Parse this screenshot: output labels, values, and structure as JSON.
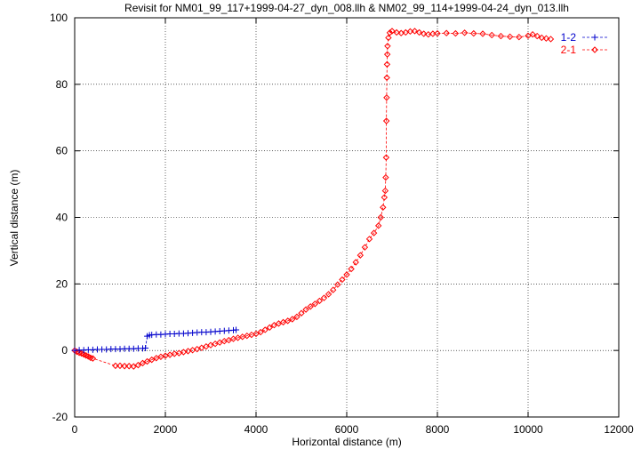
{
  "chart_data": {
    "type": "scatter",
    "title": "Revisit for NM01_99_117+1999-04-27_dyn_008.llh & NM02_99_114+1999-04-24_dyn_013.llh",
    "xlabel": "Horizontal distance (m)",
    "ylabel": "Vertical distance (m)",
    "xlim": [
      0,
      12000
    ],
    "ylim": [
      -20,
      100
    ],
    "xticks": [
      0,
      2000,
      4000,
      6000,
      8000,
      10000,
      12000
    ],
    "yticks": [
      -20,
      0,
      20,
      40,
      60,
      80,
      100
    ],
    "grid": true,
    "legend_position": "top-right",
    "series": [
      {
        "name": "1-2",
        "color": "#0000cc",
        "marker": "plus",
        "line": "dashed",
        "points": [
          [
            0,
            0.0
          ],
          [
            100,
            0.1
          ],
          [
            200,
            0.1
          ],
          [
            300,
            0.2
          ],
          [
            400,
            0.2
          ],
          [
            500,
            0.3
          ],
          [
            600,
            0.3
          ],
          [
            700,
            0.3
          ],
          [
            800,
            0.4
          ],
          [
            900,
            0.4
          ],
          [
            1000,
            0.4
          ],
          [
            1100,
            0.5
          ],
          [
            1200,
            0.5
          ],
          [
            1300,
            0.5
          ],
          [
            1400,
            0.6
          ],
          [
            1500,
            0.6
          ],
          [
            1560,
            0.7
          ],
          [
            1600,
            4.3
          ],
          [
            1650,
            4.6
          ],
          [
            1700,
            4.7
          ],
          [
            1800,
            4.8
          ],
          [
            1900,
            4.8
          ],
          [
            2000,
            4.9
          ],
          [
            2100,
            5.0
          ],
          [
            2200,
            5.0
          ],
          [
            2300,
            5.1
          ],
          [
            2400,
            5.1
          ],
          [
            2500,
            5.2
          ],
          [
            2600,
            5.3
          ],
          [
            2700,
            5.4
          ],
          [
            2800,
            5.5
          ],
          [
            2900,
            5.5
          ],
          [
            3000,
            5.6
          ],
          [
            3100,
            5.7
          ],
          [
            3200,
            5.8
          ],
          [
            3300,
            5.9
          ],
          [
            3400,
            6.0
          ],
          [
            3500,
            6.1
          ],
          [
            3560,
            6.2
          ]
        ]
      },
      {
        "name": "2-1",
        "color": "#ff0000",
        "marker": "diamond",
        "line": "dashed",
        "points": [
          [
            0,
            0.0
          ],
          [
            50,
            -0.4
          ],
          [
            100,
            -0.7
          ],
          [
            150,
            -0.9
          ],
          [
            200,
            -1.2
          ],
          [
            250,
            -1.5
          ],
          [
            300,
            -1.8
          ],
          [
            350,
            -2.2
          ],
          [
            400,
            -2.4
          ],
          [
            900,
            -4.6
          ],
          [
            1000,
            -4.6
          ],
          [
            1100,
            -4.7
          ],
          [
            1200,
            -4.7
          ],
          [
            1300,
            -4.8
          ],
          [
            1400,
            -4.4
          ],
          [
            1500,
            -3.8
          ],
          [
            1600,
            -3.3
          ],
          [
            1700,
            -2.8
          ],
          [
            1800,
            -2.3
          ],
          [
            1900,
            -1.9
          ],
          [
            2000,
            -1.6
          ],
          [
            2100,
            -1.3
          ],
          [
            2200,
            -1.0
          ],
          [
            2300,
            -0.8
          ],
          [
            2400,
            -0.5
          ],
          [
            2500,
            -0.2
          ],
          [
            2600,
            0.1
          ],
          [
            2700,
            0.4
          ],
          [
            2800,
            0.8
          ],
          [
            2900,
            1.2
          ],
          [
            3000,
            1.6
          ],
          [
            3100,
            2.0
          ],
          [
            3200,
            2.4
          ],
          [
            3300,
            2.8
          ],
          [
            3400,
            3.1
          ],
          [
            3500,
            3.5
          ],
          [
            3600,
            3.8
          ],
          [
            3700,
            4.1
          ],
          [
            3800,
            4.4
          ],
          [
            3900,
            4.7
          ],
          [
            4000,
            5.0
          ],
          [
            4100,
            5.5
          ],
          [
            4200,
            6.2
          ],
          [
            4300,
            6.9
          ],
          [
            4400,
            7.6
          ],
          [
            4500,
            8.1
          ],
          [
            4600,
            8.5
          ],
          [
            4700,
            8.9
          ],
          [
            4800,
            9.4
          ],
          [
            4900,
            10.1
          ],
          [
            5000,
            11.2
          ],
          [
            5100,
            12.3
          ],
          [
            5200,
            13.2
          ],
          [
            5300,
            14.0
          ],
          [
            5400,
            14.9
          ],
          [
            5500,
            15.8
          ],
          [
            5600,
            16.9
          ],
          [
            5700,
            18.2
          ],
          [
            5800,
            19.8
          ],
          [
            5900,
            21.3
          ],
          [
            6000,
            22.8
          ],
          [
            6100,
            24.5
          ],
          [
            6200,
            26.5
          ],
          [
            6300,
            28.6
          ],
          [
            6400,
            31.0
          ],
          [
            6500,
            33.5
          ],
          [
            6600,
            35.3
          ],
          [
            6700,
            37.5
          ],
          [
            6750,
            40.0
          ],
          [
            6800,
            43.0
          ],
          [
            6830,
            46.0
          ],
          [
            6850,
            48.0
          ],
          [
            6860,
            52.0
          ],
          [
            6870,
            58.0
          ],
          [
            6875,
            69.0
          ],
          [
            6880,
            76.0
          ],
          [
            6885,
            82.0
          ],
          [
            6890,
            86.0
          ],
          [
            6895,
            89.0
          ],
          [
            6900,
            91.5
          ],
          [
            6920,
            94.0
          ],
          [
            6950,
            95.5
          ],
          [
            7000,
            96.0
          ],
          [
            7100,
            95.6
          ],
          [
            7200,
            95.4
          ],
          [
            7300,
            95.6
          ],
          [
            7400,
            95.9
          ],
          [
            7500,
            96.0
          ],
          [
            7600,
            95.6
          ],
          [
            7700,
            95.2
          ],
          [
            7800,
            95.0
          ],
          [
            7900,
            95.2
          ],
          [
            8000,
            95.3
          ],
          [
            8200,
            95.4
          ],
          [
            8400,
            95.3
          ],
          [
            8600,
            95.5
          ],
          [
            8800,
            95.3
          ],
          [
            9000,
            95.2
          ],
          [
            9200,
            94.8
          ],
          [
            9400,
            94.5
          ],
          [
            9600,
            94.3
          ],
          [
            9800,
            94.2
          ],
          [
            10000,
            94.6
          ],
          [
            10100,
            95.0
          ],
          [
            10200,
            94.5
          ],
          [
            10300,
            94.0
          ],
          [
            10400,
            93.8
          ],
          [
            10500,
            93.6
          ]
        ]
      }
    ]
  }
}
